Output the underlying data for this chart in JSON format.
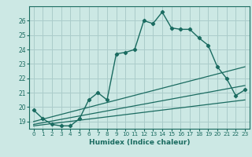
{
  "xlabel": "Humidex (Indice chaleur)",
  "bg_color": "#cce8e4",
  "grid_color": "#aaccca",
  "line_color": "#1a6b60",
  "line1_x": [
    0,
    1,
    2,
    3,
    4,
    5,
    6,
    7,
    8,
    9,
    10,
    11,
    12,
    13,
    14,
    15,
    16,
    17,
    18,
    19,
    20,
    21,
    22,
    23
  ],
  "line1_y": [
    19.8,
    19.2,
    18.8,
    18.7,
    18.7,
    19.2,
    20.5,
    21.0,
    20.5,
    23.7,
    23.8,
    24.0,
    26.0,
    25.8,
    26.6,
    25.5,
    25.4,
    25.4,
    24.8,
    24.3,
    22.8,
    22.0,
    20.8,
    21.2
  ],
  "line2_x": [
    0,
    23
  ],
  "line2_y": [
    19.0,
    22.8
  ],
  "line3_x": [
    0,
    23
  ],
  "line3_y": [
    18.8,
    21.5
  ],
  "line4_x": [
    0,
    23
  ],
  "line4_y": [
    18.7,
    20.5
  ],
  "ylim": [
    18.5,
    27.0
  ],
  "xlim": [
    -0.5,
    23.5
  ],
  "yticks": [
    19,
    20,
    21,
    22,
    23,
    24,
    25,
    26
  ],
  "xticks": [
    0,
    1,
    2,
    3,
    4,
    5,
    6,
    7,
    8,
    9,
    10,
    11,
    12,
    13,
    14,
    15,
    16,
    17,
    18,
    19,
    20,
    21,
    22,
    23
  ]
}
